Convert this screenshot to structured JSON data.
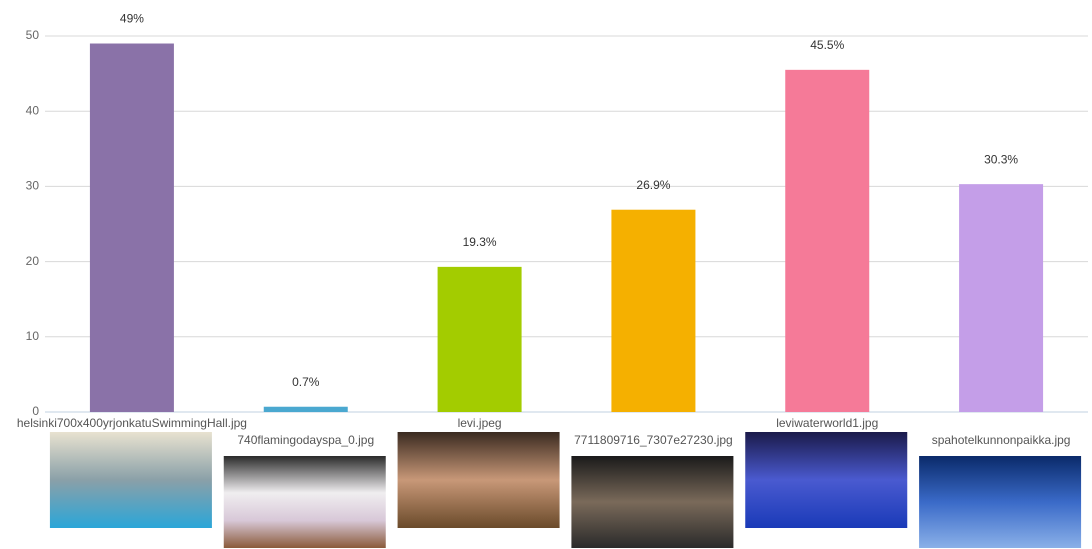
{
  "chart_data": {
    "type": "bar",
    "categories": [
      "helsinki700x400yrjonkatuSwimmingHall.jpg",
      "740flamingodayspa_0.jpg",
      "levi.jpeg",
      "7711809716_7307e27230.jpg",
      "leviwaterworld1.jpg",
      "spahotelkunnonpaikka.jpg"
    ],
    "values": [
      49,
      0.7,
      19.3,
      26.9,
      45.5,
      30.3
    ],
    "value_labels": [
      "49%",
      "0.7%",
      "19.3%",
      "26.9%",
      "45.5%",
      "30.3%"
    ],
    "colors": [
      "#8a72a8",
      "#4aa8d0",
      "#a3cc00",
      "#f5b000",
      "#f57a98",
      "#c49ee8"
    ],
    "ylim": [
      0,
      50
    ],
    "yticks": [
      0,
      10,
      20,
      30,
      40,
      50
    ],
    "grid": true
  }
}
